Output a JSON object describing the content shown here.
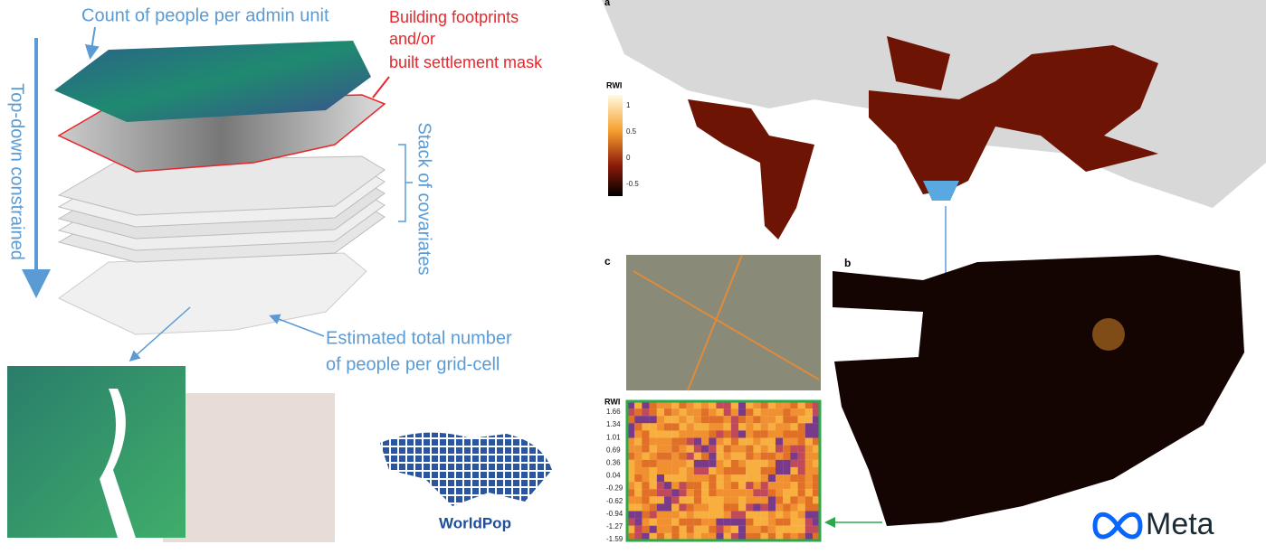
{
  "left_panel": {
    "admin_label": "Count of people per admin unit",
    "mask_label": [
      "Building footprints",
      "and/or",
      "built settlement mask"
    ],
    "direction_label": "Top-down constrained",
    "stack_label": "Stack of covariates",
    "output_label": [
      "Estimated total number",
      "of people per grid-cell"
    ],
    "logo": "WorldPop"
  },
  "right_panel": {
    "panel_a": {
      "letter": "a",
      "legend_title": "RWI",
      "legend_ticks": [
        1,
        0.5,
        0,
        -0.5
      ]
    },
    "panel_c": {
      "letter": "c",
      "legend_title": "RWI",
      "legend_ticks": [
        1.66,
        1.34,
        1.01,
        0.69,
        0.36,
        0.04,
        -0.29,
        -0.62,
        -0.94,
        -1.27,
        -1.59
      ]
    },
    "panel_b": {
      "letter": "b"
    },
    "logo": "Meta"
  }
}
